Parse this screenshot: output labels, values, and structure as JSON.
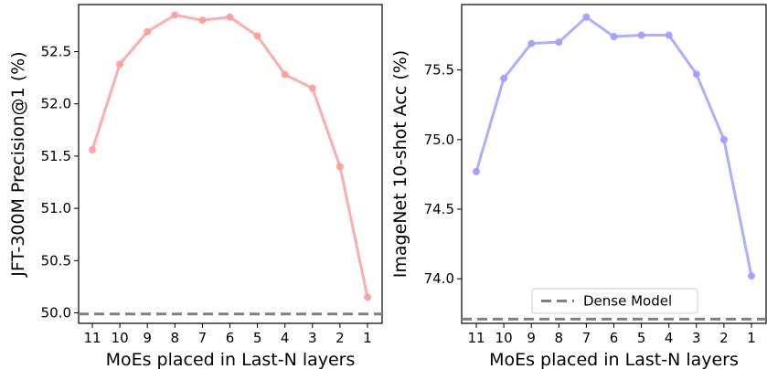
{
  "chart_data": [
    {
      "type": "line",
      "categories": [
        "11",
        "10",
        "9",
        "8",
        "7",
        "6",
        "5",
        "4",
        "3",
        "2",
        "1"
      ],
      "series": [
        {
          "values": [
            51.56,
            52.38,
            52.69,
            52.85,
            52.8,
            52.83,
            52.65,
            52.28,
            52.15,
            51.4,
            50.15
          ],
          "color": "#ff9e9e"
        }
      ],
      "reference_line": {
        "value": 49.99,
        "style": "dashed",
        "color": "#808080"
      },
      "xlabel": "MoEs placed in Last-N layers",
      "ylabel": "JFT-300M Precision@1 (%)",
      "ylim": [
        49.9,
        52.95
      ],
      "yticks": [
        "50.0",
        "50.5",
        "51.0",
        "51.5",
        "52.0",
        "52.5"
      ],
      "grid": false
    },
    {
      "type": "line",
      "categories": [
        "11",
        "10",
        "9",
        "8",
        "7",
        "6",
        "5",
        "4",
        "3",
        "2",
        "1"
      ],
      "series": [
        {
          "values": [
            74.77,
            75.44,
            75.69,
            75.7,
            75.88,
            75.74,
            75.75,
            75.75,
            75.47,
            75.0,
            74.02
          ],
          "color": "#a0a0ff"
        }
      ],
      "reference_line": {
        "value": 73.71,
        "style": "dashed",
        "color": "#808080",
        "legend": "Dense Model"
      },
      "xlabel": "MoEs placed in Last-N layers",
      "ylabel": "ImageNet 10-shot Acc (%)",
      "ylim": [
        73.68,
        75.97
      ],
      "yticks": [
        "74.0",
        "74.5",
        "75.0",
        "75.5"
      ],
      "legend_position": "bottom-center",
      "grid": false
    }
  ]
}
